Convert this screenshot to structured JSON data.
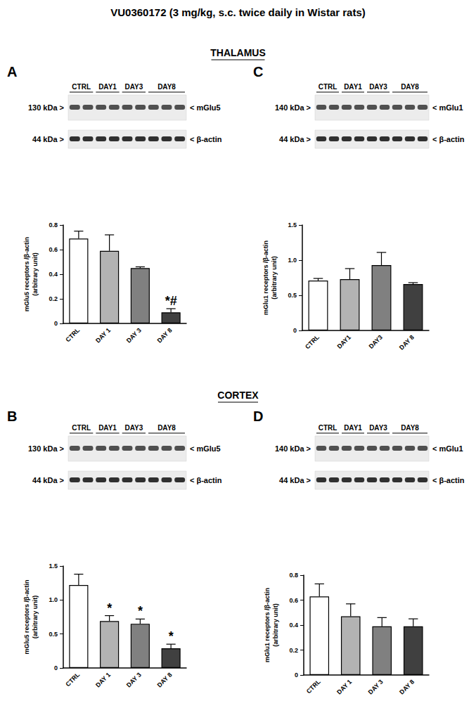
{
  "title": "VU0360172 (3 mg/kg, s.c. twice daily in Wistar rats)",
  "sections": [
    "THALAMUS",
    "CORTEX"
  ],
  "panels": [
    {
      "letter": "A",
      "blot": {
        "lanes": [
          "CTRL",
          "DAY1",
          "DAY3",
          "DAY8"
        ],
        "kda": [
          "130 kDa >",
          "44 kDa >"
        ],
        "bands": [
          "< mGlu5",
          "< β-actin"
        ]
      }
    },
    {
      "letter": "C",
      "blot": {
        "lanes": [
          "CTRL",
          "DAY1",
          "DAY3",
          "DAY8"
        ],
        "kda": [
          "140 kDa >",
          "44 kDa >"
        ],
        "bands": [
          "< mGlu1",
          "< β-actin"
        ]
      }
    },
    {
      "letter": "B",
      "blot": {
        "lanes": [
          "CTRL",
          "DAY1",
          "DAY3",
          "DAY8"
        ],
        "kda": [
          "130 kDa >",
          "44 kDa >"
        ],
        "bands": [
          "< mGlu5",
          "< β-actin"
        ]
      }
    },
    {
      "letter": "D",
      "blot": {
        "lanes": [
          "CTRL",
          "DAY1",
          "DAY3",
          "DAY8"
        ],
        "kda": [
          "140 kDa >",
          "44 kDa >"
        ],
        "bands": [
          "< mGlu1",
          "< β-actin"
        ]
      }
    }
  ],
  "chart_data": [
    {
      "type": "bar",
      "ylabel": "mGlu5 receptors /β-actin\n(arbitrary unit)",
      "categories": [
        "CTRL",
        "DAY 1",
        "DAY 3",
        "DAY 8"
      ],
      "values": [
        0.69,
        0.59,
        0.45,
        0.09
      ],
      "errors": [
        0.06,
        0.13,
        0.01,
        0.03
      ],
      "annotations": [
        null,
        null,
        null,
        "*#"
      ],
      "colors": [
        "#ffffff",
        "#b3b3b3",
        "#808080",
        "#404040"
      ],
      "ylim": [
        0,
        0.8
      ],
      "yticks": [
        0,
        0.2,
        0.4,
        0.6,
        0.8
      ],
      "grid": false
    },
    {
      "type": "bar",
      "ylabel": "mGlu1 receptors /β-actin\n(arbitrary unit)",
      "categories": [
        "CTRL",
        "DAY1",
        "DAY3",
        "DAY 8"
      ],
      "values": [
        0.71,
        0.73,
        0.93,
        0.66
      ],
      "errors": [
        0.03,
        0.15,
        0.18,
        0.02
      ],
      "annotations": [
        null,
        null,
        null,
        null
      ],
      "colors": [
        "#ffffff",
        "#b3b3b3",
        "#808080",
        "#404040"
      ],
      "ylim": [
        0,
        1.5
      ],
      "yticks": [
        0,
        0.5,
        {
          "value": 1,
          "label": "1.0"
        },
        1.5
      ],
      "grid": false
    },
    {
      "type": "bar",
      "ylabel": "mGlu5 receptors /β-actin\n(arbitrary unit)",
      "categories": [
        "CTRL",
        "DAY 1",
        "DAY 3",
        "DAY 8"
      ],
      "values": [
        1.22,
        0.69,
        0.65,
        0.29
      ],
      "errors": [
        0.16,
        0.08,
        0.07,
        0.06
      ],
      "annotations": [
        null,
        "*",
        "*",
        "*"
      ],
      "colors": [
        "#ffffff",
        "#b3b3b3",
        "#808080",
        "#404040"
      ],
      "ylim": [
        0,
        1.5
      ],
      "yticks": [
        0,
        0.5,
        {
          "value": 1,
          "label": "1.0"
        },
        1.5
      ],
      "grid": false
    },
    {
      "type": "bar",
      "ylabel": "mGlu1 receptors /β-actin\n(arbitrary unit)",
      "categories": [
        "CTRL",
        "DAY 1",
        "DAY 3",
        "DAY 8"
      ],
      "values": [
        0.63,
        0.47,
        0.39,
        0.39
      ],
      "errors": [
        0.1,
        0.1,
        0.07,
        0.06
      ],
      "annotations": [
        null,
        null,
        null,
        null
      ],
      "colors": [
        "#ffffff",
        "#b3b3b3",
        "#808080",
        "#404040"
      ],
      "ylim": [
        0,
        0.8
      ],
      "yticks": [
        0,
        0.2,
        0.4,
        0.6,
        0.8
      ],
      "grid": false
    }
  ]
}
